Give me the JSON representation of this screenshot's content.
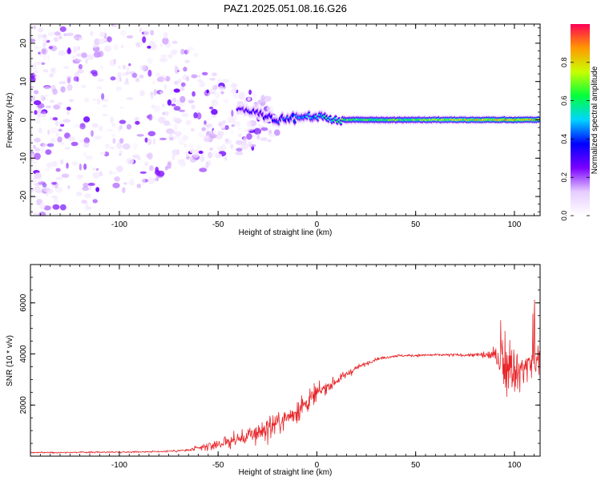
{
  "title": "PAZ1.2025.051.08.16.G26",
  "chart_data": [
    {
      "type": "heatmap",
      "xlabel": "Height of straight line (km)",
      "ylabel": "Frequency (Hz)",
      "xlim": [
        -145,
        113
      ],
      "ylim": [
        -25,
        25
      ],
      "x_ticks": [
        -100,
        -50,
        0,
        50,
        100
      ],
      "y_ticks": [
        -20,
        -10,
        0,
        10,
        20
      ],
      "colorbar": {
        "label": "Normalized spectral amplitude",
        "range": [
          0,
          1
        ],
        "ticks": [
          "0.0",
          "0.2",
          "0.4",
          "0.6",
          "0.8"
        ],
        "tick_values": [
          0,
          0.2,
          0.4,
          0.6,
          0.8
        ],
        "colormap": [
          "#ffffff",
          "#e6ccff",
          "#7a00ff",
          "#0000ff",
          "#00d5ff",
          "#00ff3c",
          "#c8ff00",
          "#ff9900",
          "#ff0055"
        ]
      },
      "ridge": {
        "description": "Dominant Doppler component near 0 Hz",
        "x": [
          -40,
          -30,
          -20,
          -10,
          0,
          10,
          20,
          40,
          60,
          80,
          100,
          113
        ],
        "frequency": [
          3,
          2,
          0,
          0.5,
          1,
          0,
          0,
          0,
          0,
          0,
          0,
          0
        ],
        "amplitude": [
          0.25,
          0.3,
          0.35,
          0.4,
          0.45,
          0.55,
          0.6,
          0.6,
          0.65,
          0.7,
          0.75,
          0.7
        ]
      },
      "scatter_region": {
        "x": [
          -145,
          -20
        ],
        "frequency": [
          -25,
          25
        ],
        "amplitude_max": 0.15
      }
    },
    {
      "type": "line",
      "xlabel": "Height of straight line (km)",
      "ylabel": "SNR (10 * v/v)",
      "xlim": [
        -145,
        113
      ],
      "ylim": [
        0,
        7500
      ],
      "x_ticks": [
        -100,
        -50,
        0,
        50,
        100
      ],
      "y_ticks": [
        2000,
        4000,
        6000
      ],
      "color": "#e8262a",
      "envelope": {
        "x": [
          -145,
          -120,
          -100,
          -80,
          -65,
          -55,
          -45,
          -35,
          -25,
          -15,
          -5,
          0,
          5,
          10,
          20,
          30,
          40,
          60,
          80,
          90,
          95,
          100,
          105,
          110,
          113
        ],
        "snr": [
          140,
          150,
          160,
          180,
          230,
          380,
          560,
          760,
          1100,
          1500,
          2100,
          2450,
          2700,
          2950,
          3450,
          3800,
          3930,
          3960,
          3960,
          3950,
          3650,
          3150,
          3500,
          3700,
          3600
        ],
        "noise": [
          50,
          50,
          50,
          60,
          100,
          260,
          480,
          620,
          820,
          850,
          780,
          600,
          450,
          330,
          170,
          110,
          95,
          90,
          120,
          450,
          1700,
          1900,
          1100,
          1500,
          2000
        ]
      }
    }
  ]
}
